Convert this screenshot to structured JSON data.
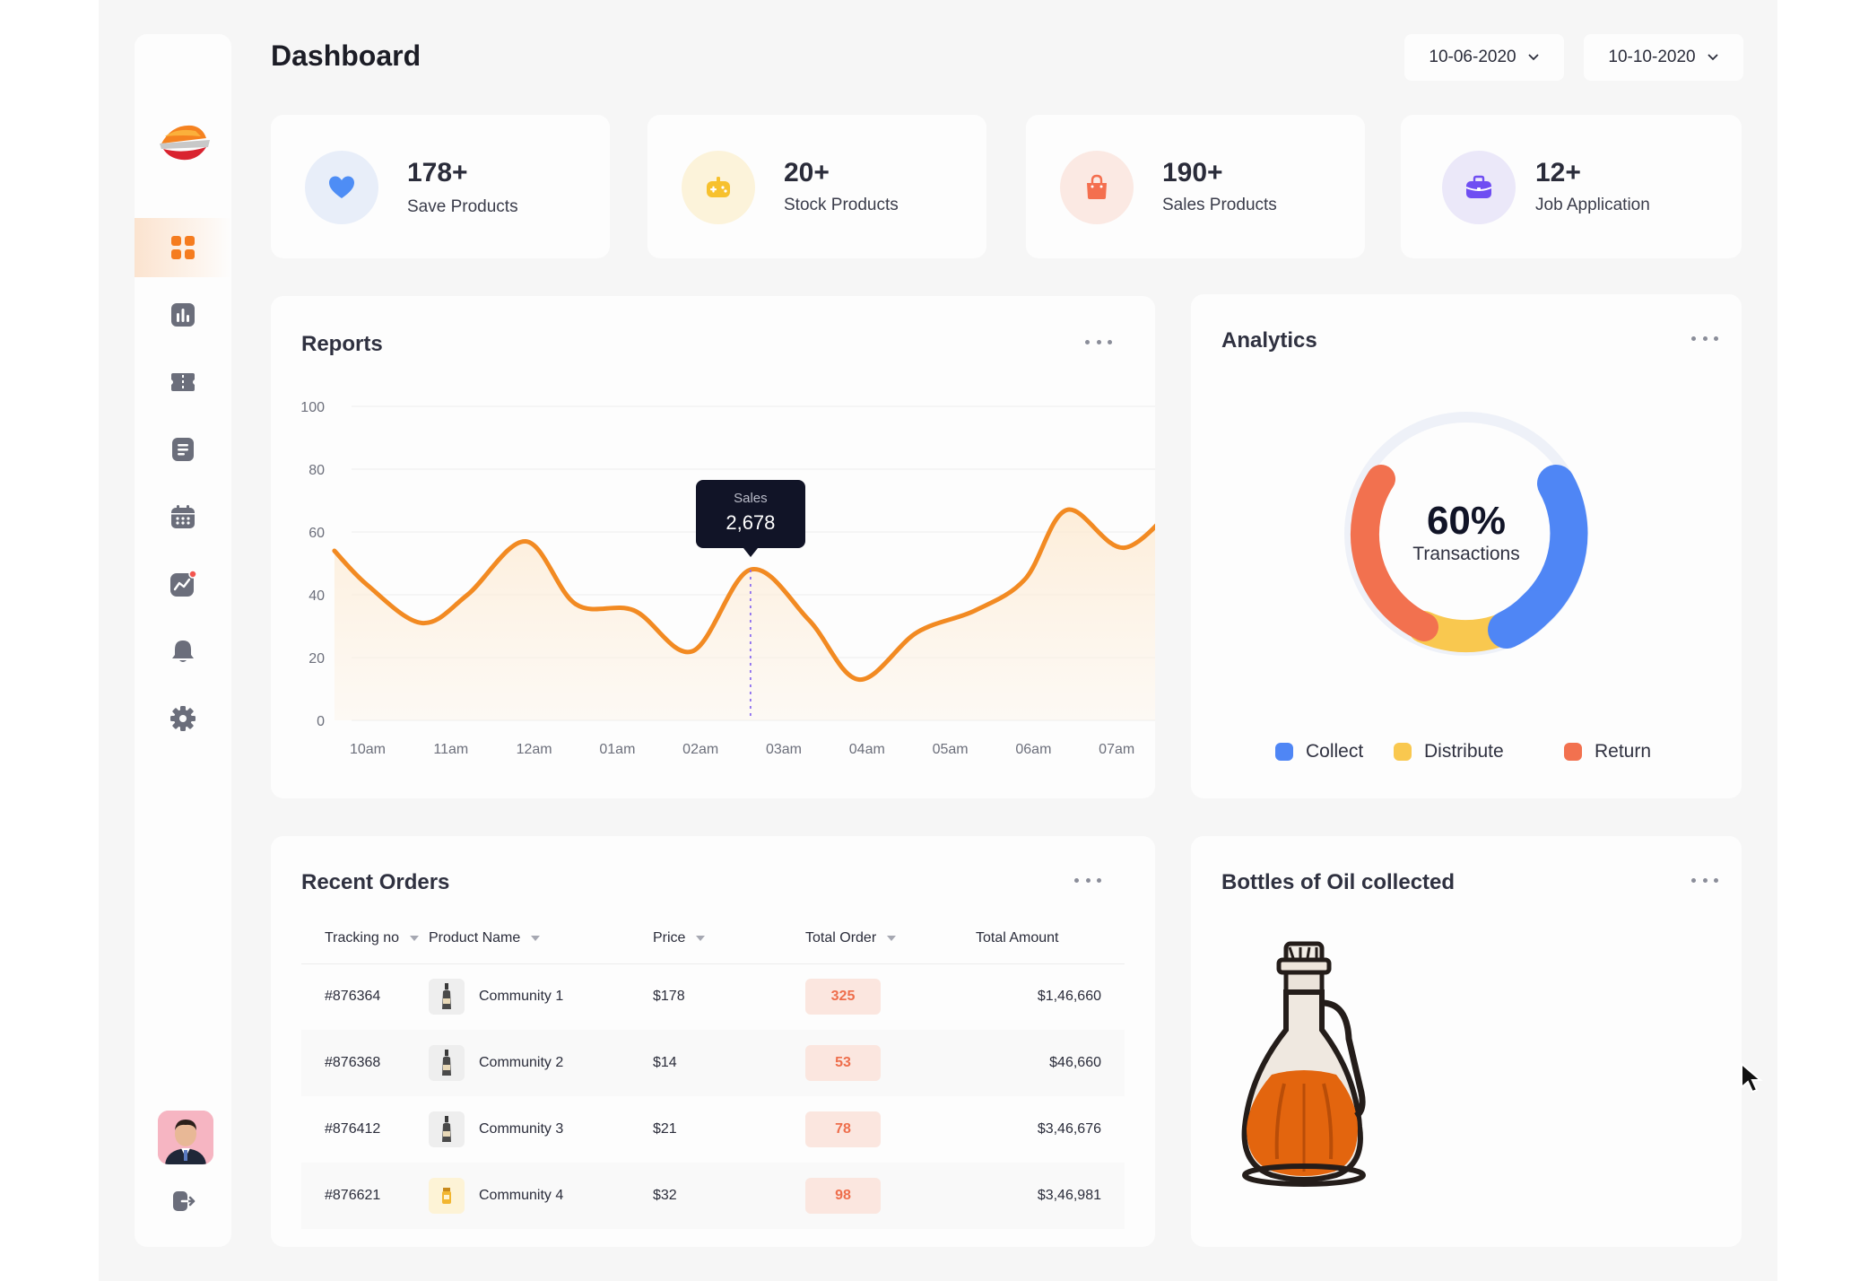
{
  "page": {
    "title": "Dashboard"
  },
  "date_range": {
    "start": "10-06-2020",
    "end": "10-10-2020"
  },
  "sidebar": {
    "items": [
      {
        "name": "dashboard",
        "icon": "grid-icon",
        "active": true
      },
      {
        "name": "reports",
        "icon": "bar-chart-icon"
      },
      {
        "name": "products",
        "icon": "ticket-icon"
      },
      {
        "name": "documents",
        "icon": "document-icon"
      },
      {
        "name": "calendar",
        "icon": "calendar-icon"
      },
      {
        "name": "analytics",
        "icon": "trending-icon"
      },
      {
        "name": "notifications",
        "icon": "bell-icon"
      },
      {
        "name": "settings",
        "icon": "gear-icon"
      }
    ],
    "active_color": "#f57c1f",
    "icon_color": "#6b6e7b"
  },
  "stats": [
    {
      "value": "178+",
      "label": "Save Products",
      "icon": "heart-icon",
      "color": "#4e8df5",
      "bg": "#e8eef9"
    },
    {
      "value": "20+",
      "label": "Stock Products",
      "icon": "gamepad-icon",
      "color": "#f7c12e",
      "bg": "#fcf3da"
    },
    {
      "value": "190+",
      "label": "Sales Products",
      "icon": "shopping-bag-icon",
      "color": "#f46f4f",
      "bg": "#fbe9e3"
    },
    {
      "value": "12+",
      "label": "Job Application",
      "icon": "briefcase-icon",
      "color": "#6f4ef2",
      "bg": "#ebe8f9"
    }
  ],
  "reports": {
    "title": "Reports",
    "tooltip": {
      "label": "Sales",
      "value": "2,678"
    }
  },
  "chart_data": {
    "type": "area",
    "title": "Reports",
    "xlabel": "",
    "ylabel": "",
    "x_ticks": [
      "10am",
      "11am",
      "12am",
      "01am",
      "02am",
      "03am",
      "04am",
      "05am",
      "06am",
      "07am"
    ],
    "y_ticks": [
      0,
      20,
      40,
      60,
      80,
      100
    ],
    "ylim": [
      0,
      100
    ],
    "grid": true,
    "line_color": "#f28a22",
    "series": [
      {
        "values": [
          {
            "x": 9.6,
            "y": 54
          },
          {
            "x": 10.0,
            "y": 43
          },
          {
            "x": 10.65,
            "y": 31
          },
          {
            "x": 11.2,
            "y": 40
          },
          {
            "x": 11.9,
            "y": 57
          },
          {
            "x": 12.5,
            "y": 37
          },
          {
            "x": 13.2,
            "y": 35
          },
          {
            "x": 13.9,
            "y": 22
          },
          {
            "x": 14.6,
            "y": 48
          },
          {
            "x": 15.3,
            "y": 32
          },
          {
            "x": 15.9,
            "y": 13
          },
          {
            "x": 16.6,
            "y": 28
          },
          {
            "x": 17.3,
            "y": 35
          },
          {
            "x": 17.9,
            "y": 45
          },
          {
            "x": 18.4,
            "y": 67
          },
          {
            "x": 19.1,
            "y": 55
          },
          {
            "x": 19.85,
            "y": 73
          }
        ]
      }
    ],
    "tooltip_x": 14.6
  },
  "analytics": {
    "title": "Analytics",
    "center_value": "60%",
    "center_label": "Transactions",
    "legend": [
      {
        "label": "Collect",
        "color": "#4f86f5"
      },
      {
        "label": "Distribute",
        "color": "#f9c84f"
      },
      {
        "label": "Return",
        "color": "#f2714f"
      }
    ]
  },
  "orders": {
    "title": "Recent Orders",
    "columns": [
      "Tracking no",
      "Product Name",
      "Price",
      "Total Order",
      "Total Amount"
    ],
    "rows": [
      {
        "tracking": "#876364",
        "product": "Community 1",
        "price": "$178",
        "total_order": "325",
        "amount": "$1,46,660"
      },
      {
        "tracking": "#876368",
        "product": "Community 2",
        "price": "$14",
        "total_order": "53",
        "amount": "$46,660"
      },
      {
        "tracking": "#876412",
        "product": "Community 3",
        "price": "$21",
        "total_order": "78",
        "amount": "$3,46,676"
      },
      {
        "tracking": "#876621",
        "product": "Community 4",
        "price": "$32",
        "total_order": "98",
        "amount": "$3,46,981"
      }
    ]
  },
  "bottles": {
    "title": "Bottles of Oil collected",
    "illustration": "oil-bottle-icon"
  }
}
